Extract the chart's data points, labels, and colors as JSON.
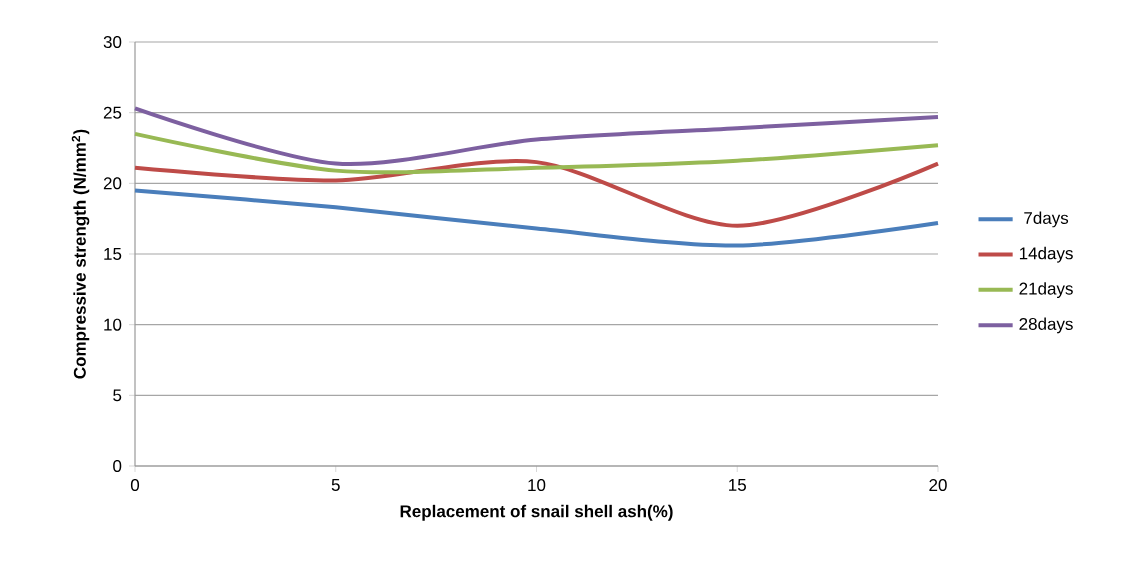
{
  "chart_data": {
    "type": "line",
    "xlabel": "Replacement of snail shell ash(%)",
    "ylabel": "Compressive strength (N/mm$^{2}$)",
    "x": [
      0,
      5,
      10,
      15,
      20
    ],
    "series": [
      {
        "name": "7days",
        "color": "#4a7ebb",
        "values": [
          19.5,
          18.3,
          16.8,
          15.6,
          17.2
        ]
      },
      {
        "name": "14days",
        "color": "#be4b48",
        "values": [
          21.1,
          20.2,
          21.5,
          17.0,
          21.4
        ]
      },
      {
        "name": "21days",
        "color": "#98b954",
        "values": [
          23.5,
          20.9,
          21.1,
          21.6,
          22.7
        ]
      },
      {
        "name": "28days",
        "color": "#7d60a0",
        "values": [
          25.3,
          21.4,
          23.1,
          23.9,
          24.7
        ]
      }
    ],
    "xlim": [
      0,
      20
    ],
    "xticks": [
      0,
      5,
      10,
      15,
      20
    ],
    "ylim": [
      0,
      30
    ],
    "yticks": [
      0,
      5,
      10,
      15,
      20,
      25,
      30
    ],
    "grid": "y",
    "legend": "right",
    "marker": "none",
    "line_style": "solid"
  }
}
